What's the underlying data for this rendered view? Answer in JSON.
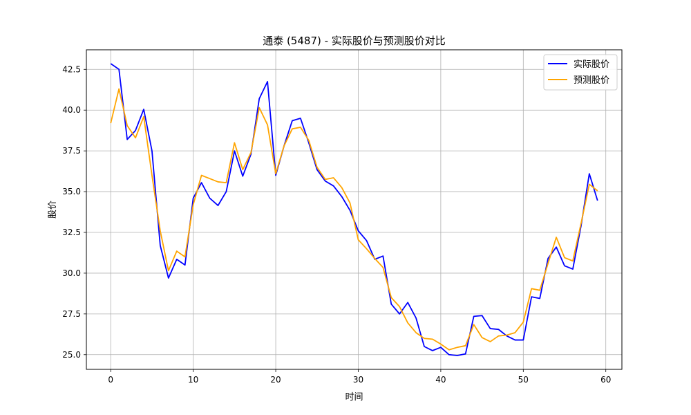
{
  "chart_data": {
    "type": "line",
    "title": "通泰 (5487) - 实际股价与预测股价对比",
    "xlabel": "时间",
    "ylabel": "股价",
    "xlim": [
      -2.95,
      61.95
    ],
    "ylim": [
      24.1,
      43.7
    ],
    "x_ticks": [
      0,
      10,
      20,
      30,
      40,
      50,
      60
    ],
    "y_ticks": [
      25.0,
      27.5,
      30.0,
      32.5,
      35.0,
      37.5,
      40.0,
      42.5
    ],
    "x_tick_labels": [
      "0",
      "10",
      "20",
      "30",
      "40",
      "50",
      "60"
    ],
    "y_tick_labels": [
      "25.0",
      "27.5",
      "30.0",
      "32.5",
      "35.0",
      "37.5",
      "40.0",
      "42.5"
    ],
    "grid": true,
    "legend_position": "top-right",
    "x": [
      0,
      1,
      2,
      3,
      4,
      5,
      6,
      7,
      8,
      9,
      10,
      11,
      12,
      13,
      14,
      15,
      16,
      17,
      18,
      19,
      20,
      21,
      22,
      23,
      24,
      25,
      26,
      27,
      28,
      29,
      30,
      31,
      32,
      33,
      34,
      35,
      36,
      37,
      38,
      39,
      40,
      41,
      42,
      43,
      44,
      45,
      46,
      47,
      48,
      49,
      50,
      51,
      52,
      53,
      54,
      55,
      56,
      57,
      58,
      59
    ],
    "series": [
      {
        "name": "实际股价",
        "color": "#0000ff",
        "values": [
          42.85,
          42.5,
          38.2,
          38.75,
          40.05,
          37.5,
          31.7,
          29.7,
          30.85,
          30.5,
          34.6,
          35.55,
          34.6,
          34.15,
          35.0,
          37.5,
          35.95,
          37.3,
          40.7,
          41.75,
          36.0,
          37.8,
          39.35,
          39.5,
          38.0,
          36.35,
          35.65,
          35.35,
          34.7,
          33.85,
          32.6,
          32.0,
          30.85,
          31.05,
          28.1,
          27.5,
          28.2,
          27.25,
          25.5,
          25.25,
          25.45,
          25.0,
          24.95,
          25.05,
          27.35,
          27.4,
          26.6,
          26.55,
          26.15,
          25.9,
          25.9,
          28.55,
          28.45,
          30.9,
          31.6,
          30.45,
          30.25,
          32.9,
          36.1,
          34.45
        ]
      },
      {
        "name": "预测股价",
        "color": "#ffa500",
        "values": [
          39.2,
          41.3,
          39.05,
          38.3,
          39.6,
          36.0,
          32.6,
          30.15,
          31.35,
          31.0,
          34.2,
          36.0,
          35.8,
          35.6,
          35.55,
          38.0,
          36.35,
          37.4,
          40.15,
          39.1,
          36.1,
          37.8,
          38.85,
          38.95,
          38.15,
          36.5,
          35.75,
          35.85,
          35.25,
          34.3,
          32.05,
          31.5,
          30.9,
          30.35,
          28.5,
          27.95,
          26.95,
          26.35,
          26.0,
          25.95,
          25.65,
          25.3,
          25.45,
          25.55,
          26.85,
          26.05,
          25.8,
          26.15,
          26.2,
          26.35,
          27.0,
          29.05,
          28.95,
          30.6,
          32.2,
          30.95,
          30.75,
          33.05,
          35.45,
          35.05
        ]
      }
    ]
  }
}
